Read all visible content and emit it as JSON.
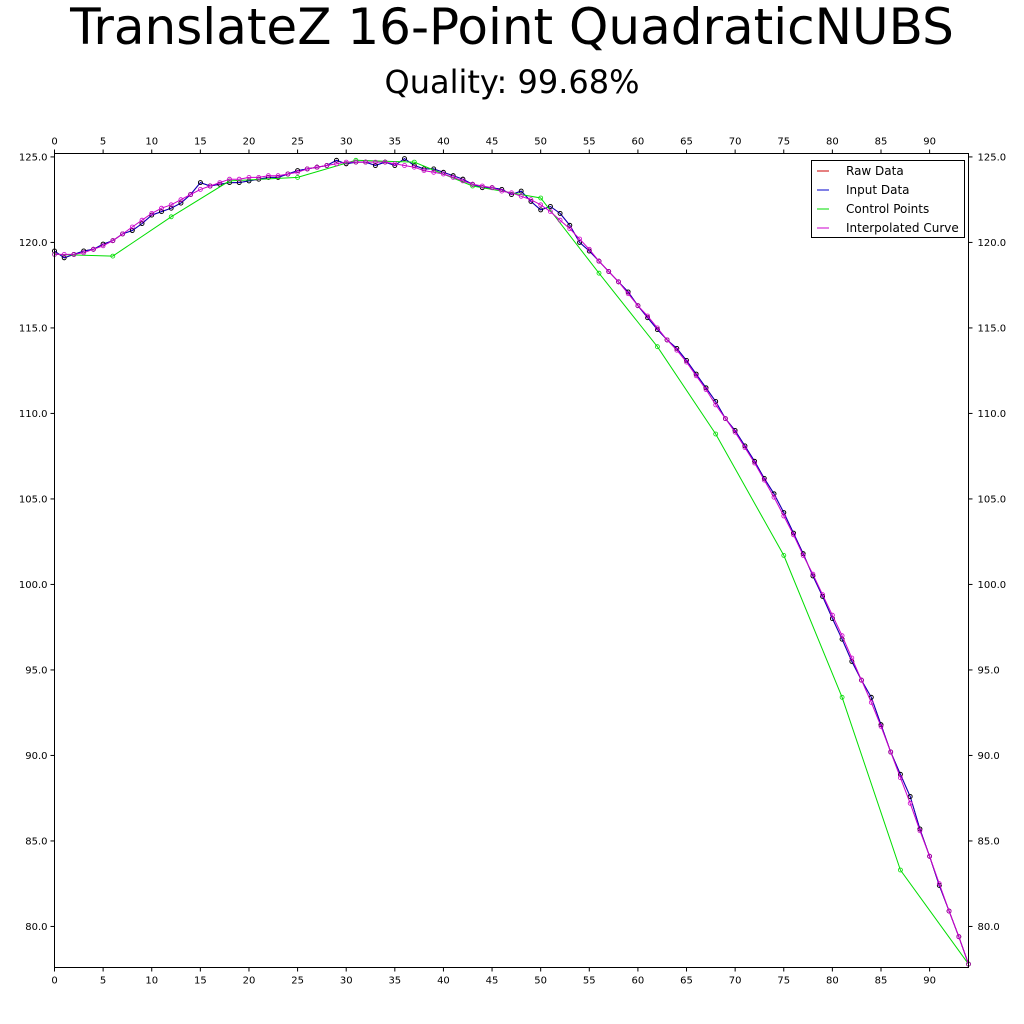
{
  "chart_data": {
    "type": "line",
    "title": "TranslateZ 16-Point QuadraticNUBS",
    "subtitle": "Quality: 99.68%",
    "xlabel": "",
    "ylabel": "",
    "xlim": [
      0,
      94
    ],
    "ylim": [
      77.6,
      125.2
    ],
    "x_ticks": [
      0,
      5,
      10,
      15,
      20,
      25,
      30,
      35,
      40,
      45,
      50,
      55,
      60,
      65,
      70,
      75,
      80,
      85,
      90
    ],
    "x_tick_labels": [
      "0",
      "5",
      "10",
      "15",
      "20",
      "25",
      "30",
      "35",
      "40",
      "45",
      "50",
      "55",
      "60",
      "65",
      "70",
      "75",
      "80",
      "85",
      "90"
    ],
    "y_ticks": [
      80,
      85,
      90,
      95,
      100,
      105,
      110,
      115,
      120,
      125
    ],
    "y_tick_labels": [
      "80.0",
      "85.0",
      "90.0",
      "95.0",
      "100.0",
      "105.0",
      "110.0",
      "115.0",
      "120.0",
      "125.0"
    ],
    "grid": false,
    "legend_position": "top-right",
    "series": [
      {
        "name": "Raw Data",
        "color": "#cc0000",
        "marker": "circle",
        "x": [
          0,
          1,
          2,
          3,
          4,
          5,
          6,
          7,
          8,
          9,
          10,
          11,
          12,
          13,
          14,
          15,
          16,
          17,
          18,
          19,
          20,
          21,
          22,
          23,
          24,
          25,
          26,
          27,
          28,
          29,
          30,
          31,
          32,
          33,
          34,
          35,
          36,
          37,
          38,
          39,
          40,
          41,
          42,
          43,
          44,
          45,
          46,
          47,
          48,
          49,
          50,
          51,
          52,
          53,
          54,
          55,
          56,
          57,
          58,
          59,
          60,
          61,
          62,
          63,
          64,
          65,
          66,
          67,
          68,
          69,
          70,
          71,
          72,
          73,
          74,
          75,
          76,
          77,
          78,
          79,
          80,
          81,
          82,
          83,
          84,
          85,
          86,
          87,
          88,
          89,
          90,
          91,
          92,
          93,
          94
        ],
        "y": [
          119.5,
          119.1,
          119.3,
          119.5,
          119.6,
          119.9,
          120.1,
          120.5,
          120.7,
          121.1,
          121.6,
          121.8,
          122.0,
          122.3,
          122.8,
          123.5,
          123.3,
          123.4,
          123.5,
          123.5,
          123.6,
          123.7,
          123.8,
          123.8,
          124.0,
          124.2,
          124.3,
          124.4,
          124.5,
          124.8,
          124.6,
          124.7,
          124.7,
          124.5,
          124.7,
          124.5,
          124.9,
          124.5,
          124.3,
          124.3,
          124.1,
          123.9,
          123.7,
          123.4,
          123.2,
          123.2,
          123.1,
          122.8,
          123.0,
          122.4,
          121.9,
          122.1,
          121.7,
          121.0,
          120.0,
          119.5,
          118.9,
          118.3,
          117.7,
          117.1,
          116.3,
          115.6,
          114.9,
          114.3,
          113.8,
          113.1,
          112.3,
          111.5,
          110.7,
          109.7,
          109.0,
          108.1,
          107.2,
          106.2,
          105.3,
          104.2,
          103.0,
          101.8,
          100.5,
          99.3,
          98.0,
          96.8,
          95.5,
          94.4,
          93.4,
          91.8,
          90.2,
          88.9,
          87.6,
          85.7,
          84.1,
          82.4,
          80.9,
          79.4,
          77.8
        ]
      },
      {
        "name": "Input Data",
        "color": "#0000cc",
        "marker": "circle",
        "x": [
          0,
          1,
          2,
          3,
          4,
          5,
          6,
          7,
          8,
          9,
          10,
          11,
          12,
          13,
          14,
          15,
          16,
          17,
          18,
          19,
          20,
          21,
          22,
          23,
          24,
          25,
          26,
          27,
          28,
          29,
          30,
          31,
          32,
          33,
          34,
          35,
          36,
          37,
          38,
          39,
          40,
          41,
          42,
          43,
          44,
          45,
          46,
          47,
          48,
          49,
          50,
          51,
          52,
          53,
          54,
          55,
          56,
          57,
          58,
          59,
          60,
          61,
          62,
          63,
          64,
          65,
          66,
          67,
          68,
          69,
          70,
          71,
          72,
          73,
          74,
          75,
          76,
          77,
          78,
          79,
          80,
          81,
          82,
          83,
          84,
          85,
          86,
          87,
          88,
          89,
          90,
          91,
          92,
          93,
          94
        ],
        "y": [
          119.5,
          119.1,
          119.3,
          119.5,
          119.6,
          119.9,
          120.1,
          120.5,
          120.7,
          121.1,
          121.6,
          121.8,
          122.0,
          122.3,
          122.8,
          123.5,
          123.3,
          123.4,
          123.5,
          123.5,
          123.6,
          123.7,
          123.8,
          123.8,
          124.0,
          124.2,
          124.3,
          124.4,
          124.5,
          124.8,
          124.6,
          124.7,
          124.7,
          124.5,
          124.7,
          124.5,
          124.9,
          124.5,
          124.3,
          124.3,
          124.1,
          123.9,
          123.7,
          123.4,
          123.2,
          123.2,
          123.1,
          122.8,
          123.0,
          122.4,
          121.9,
          122.1,
          121.7,
          121.0,
          120.0,
          119.5,
          118.9,
          118.3,
          117.7,
          117.1,
          116.3,
          115.6,
          114.9,
          114.3,
          113.8,
          113.1,
          112.3,
          111.5,
          110.7,
          109.7,
          109.0,
          108.1,
          107.2,
          106.2,
          105.3,
          104.2,
          103.0,
          101.8,
          100.5,
          99.3,
          98.0,
          96.8,
          95.5,
          94.4,
          93.4,
          91.8,
          90.2,
          88.9,
          87.6,
          85.7,
          84.1,
          82.4,
          80.9,
          79.4,
          77.8
        ]
      },
      {
        "name": "Control Points",
        "color": "#00dd00",
        "marker": "circle",
        "x": [
          0,
          6,
          12,
          18,
          25,
          31,
          37,
          43,
          50,
          56,
          62,
          68,
          75,
          81,
          87,
          94
        ],
        "y": [
          119.3,
          119.2,
          121.5,
          123.6,
          123.8,
          124.8,
          124.7,
          123.3,
          122.6,
          118.2,
          113.9,
          108.8,
          101.7,
          93.4,
          83.3,
          77.8
        ]
      },
      {
        "name": "Interpolated Curve",
        "color": "#cc00cc",
        "marker": "circle",
        "x": [
          0,
          1,
          2,
          3,
          4,
          5,
          6,
          7,
          8,
          9,
          10,
          11,
          12,
          13,
          14,
          15,
          16,
          17,
          18,
          19,
          20,
          21,
          22,
          23,
          24,
          25,
          26,
          27,
          28,
          29,
          30,
          31,
          32,
          33,
          34,
          35,
          36,
          37,
          38,
          39,
          40,
          41,
          42,
          43,
          44,
          45,
          46,
          47,
          48,
          49,
          50,
          51,
          52,
          53,
          54,
          55,
          56,
          57,
          58,
          59,
          60,
          61,
          62,
          63,
          64,
          65,
          66,
          67,
          68,
          69,
          70,
          71,
          72,
          73,
          74,
          75,
          76,
          77,
          78,
          79,
          80,
          81,
          82,
          83,
          84,
          85,
          86,
          87,
          88,
          89,
          90,
          91,
          92,
          93,
          94
        ],
        "y": [
          119.3,
          119.3,
          119.3,
          119.4,
          119.6,
          119.8,
          120.1,
          120.5,
          120.9,
          121.3,
          121.7,
          122.0,
          122.2,
          122.5,
          122.8,
          123.1,
          123.3,
          123.5,
          123.7,
          123.7,
          123.8,
          123.8,
          123.9,
          123.9,
          124.0,
          124.1,
          124.3,
          124.4,
          124.5,
          124.6,
          124.7,
          124.7,
          124.7,
          124.7,
          124.7,
          124.6,
          124.5,
          124.4,
          124.2,
          124.1,
          124.0,
          123.8,
          123.6,
          123.4,
          123.3,
          123.2,
          123.0,
          122.9,
          122.7,
          122.5,
          122.2,
          121.8,
          121.3,
          120.8,
          120.2,
          119.6,
          118.9,
          118.3,
          117.7,
          117.0,
          116.3,
          115.7,
          115.0,
          114.3,
          113.7,
          113.0,
          112.2,
          111.4,
          110.5,
          109.7,
          108.9,
          108.0,
          107.1,
          106.1,
          105.1,
          104.0,
          102.9,
          101.7,
          100.6,
          99.4,
          98.2,
          97.0,
          95.7,
          94.4,
          93.1,
          91.7,
          90.2,
          88.7,
          87.2,
          85.6,
          84.1,
          82.5,
          80.9,
          79.4,
          77.8
        ]
      }
    ]
  }
}
